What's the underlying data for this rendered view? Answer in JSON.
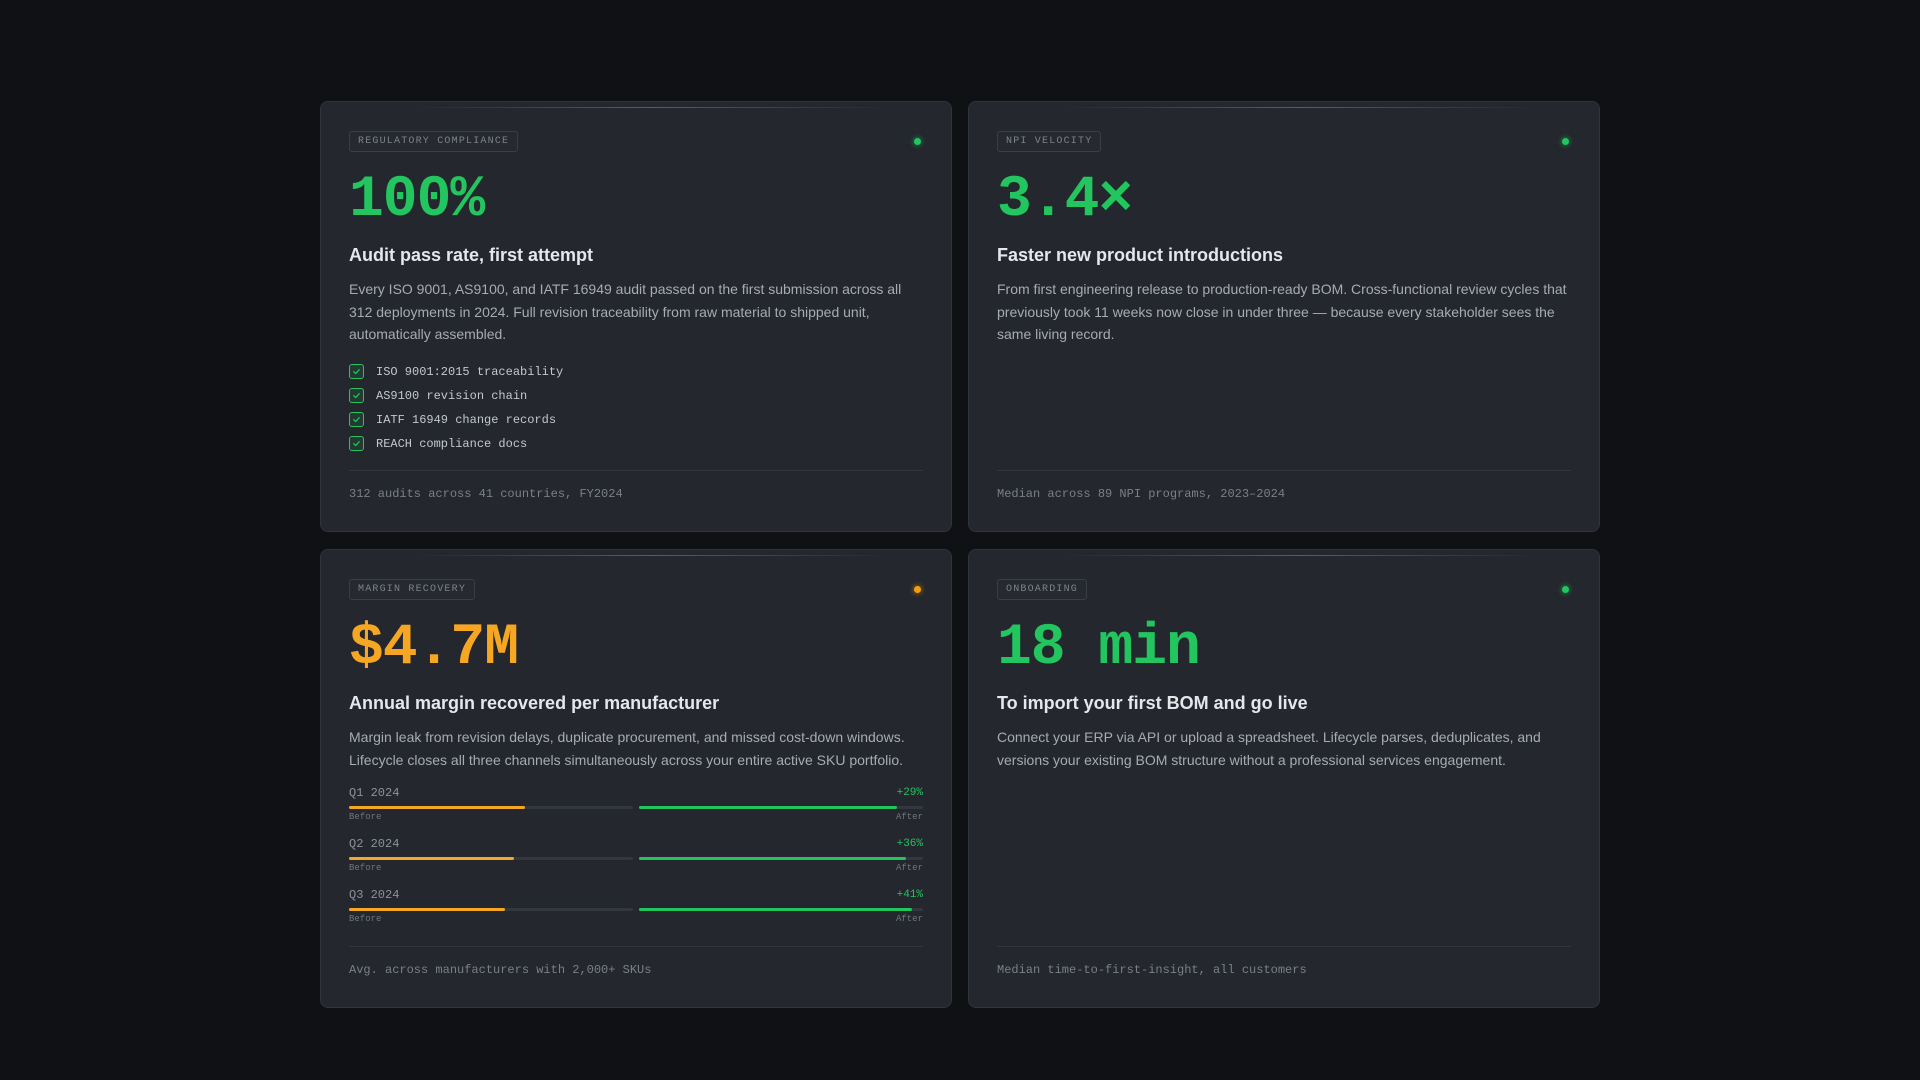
{
  "cards": [
    {
      "tag": "REGULATORY COMPLIANCE",
      "status_color": "#22c55e",
      "metric": "100%",
      "title": "Audit pass rate, first attempt",
      "description": "Every ISO 9001, AS9100, and IATF 16949 audit passed on the first submission across all 312 deployments in 2024. Full revision traceability from raw material to shipped unit, automatically assembled.",
      "checklist": [
        "ISO 9001:2015 traceability",
        "AS9100 revision chain",
        "IATF 16949 change records",
        "REACH compliance docs"
      ],
      "footer": "312 audits across 41 countries, FY2024"
    },
    {
      "tag": "NPI VELOCITY",
      "status_color": "#22c55e",
      "metric": "3.4×",
      "title": "Faster new product introductions",
      "description": "From first engineering release to production-ready BOM. Cross-functional review cycles that previously took 11 weeks now close in under three — because every stakeholder sees the same living record.",
      "footer": "Median across 89 NPI programs, 2023–2024"
    },
    {
      "tag": "MARGIN RECOVERY",
      "status_color": "#f59e0b",
      "metric": "$4.7M",
      "title": "Annual margin recovered per manufacturer",
      "description": "Margin leak from revision delays, duplicate procurement, and missed cost-down windows. Lifecycle closes all three channels simultaneously across your entire active SKU portfolio.",
      "bars": [
        {
          "quarter": "Q1 2024",
          "delta": "+29%",
          "before_label": "Before",
          "after_label": "After",
          "before": 0.62,
          "after": 0.91
        },
        {
          "quarter": "Q2 2024",
          "delta": "+36%",
          "before_label": "Before",
          "after_label": "After",
          "before": 0.58,
          "after": 0.94
        },
        {
          "quarter": "Q3 2024",
          "delta": "+41%",
          "before_label": "Before",
          "after_label": "After",
          "before": 0.55,
          "after": 0.96
        }
      ],
      "footer": "Avg. across manufacturers with 2,000+ SKUs"
    },
    {
      "tag": "ONBOARDING",
      "status_color": "#22c55e",
      "metric": "18 min",
      "title": "To import your first BOM and go live",
      "description": "Connect your ERP via API or upload a spreadsheet. Lifecycle parses, deduplicates, and versions your existing BOM structure without a professional services engagement.",
      "footer": "Median time-to-first-insight, all customers"
    }
  ]
}
